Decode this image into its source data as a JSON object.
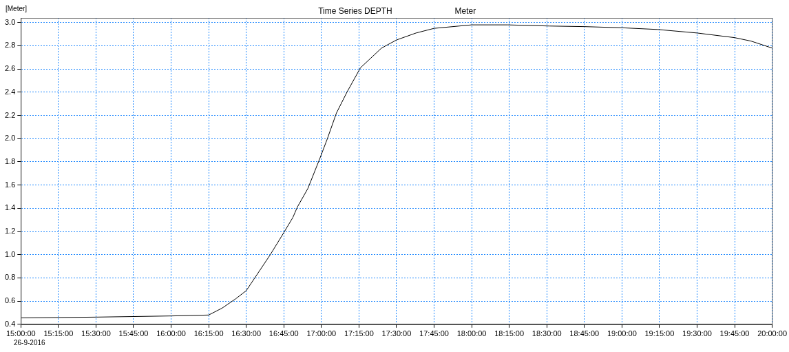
{
  "chart_data": {
    "type": "line",
    "title": "Time Series DEPTH",
    "subtitle": "Meter",
    "ylabel": "[Meter]",
    "annotations": [
      "26-9-2016"
    ],
    "x": [
      15.0,
      15.5,
      16.0,
      16.25,
      16.34,
      16.43,
      16.5,
      16.66,
      16.75,
      16.81,
      16.84,
      16.91,
      16.99,
      17.04,
      17.1,
      17.17,
      17.26,
      17.4,
      17.5,
      17.63,
      17.75,
      18.0,
      18.24,
      18.52,
      18.75,
      19.0,
      19.24,
      19.5,
      19.75,
      19.86,
      20.0
    ],
    "series": [
      {
        "color": "#000000",
        "values": [
          0.455,
          0.462,
          0.472,
          0.48,
          0.54,
          0.62,
          0.69,
          1.0,
          1.19,
          1.32,
          1.41,
          1.57,
          1.83,
          2.0,
          2.22,
          2.4,
          2.61,
          2.78,
          2.85,
          2.91,
          2.95,
          2.98,
          2.98,
          2.97,
          2.965,
          2.955,
          2.94,
          2.91,
          2.87,
          2.84,
          2.78
        ]
      }
    ],
    "xlim": [
      15,
      20
    ],
    "xticks": [
      {
        "value": 15,
        "label": "15:00:00"
      },
      {
        "value": 15.25,
        "label": "15:15:00"
      },
      {
        "value": 15.5,
        "label": "15:30:00"
      },
      {
        "value": 15.75,
        "label": "15:45:00"
      },
      {
        "value": 16,
        "label": "16:00:00"
      },
      {
        "value": 16.25,
        "label": "16:15:00"
      },
      {
        "value": 16.5,
        "label": "16:30:00"
      },
      {
        "value": 16.75,
        "label": "16:45:00"
      },
      {
        "value": 17,
        "label": "17:00:00"
      },
      {
        "value": 17.25,
        "label": "17:15:00"
      },
      {
        "value": 17.5,
        "label": "17:30:00"
      },
      {
        "value": 17.75,
        "label": "17:45:00"
      },
      {
        "value": 18,
        "label": "18:00:00"
      },
      {
        "value": 18.25,
        "label": "18:15:00"
      },
      {
        "value": 18.5,
        "label": "18:30:00"
      },
      {
        "value": 18.75,
        "label": "18:45:00"
      },
      {
        "value": 19,
        "label": "19:00:00"
      },
      {
        "value": 19.25,
        "label": "19:15:00"
      },
      {
        "value": 19.5,
        "label": "19:30:00"
      },
      {
        "value": 19.75,
        "label": "19:45:00"
      },
      {
        "value": 20,
        "label": "20:00:00"
      }
    ],
    "ylim": [
      0.4,
      3.04
    ],
    "yticks": [
      {
        "value": 0.4,
        "label": "0.4"
      },
      {
        "value": 0.6,
        "label": "0.6"
      },
      {
        "value": 0.8,
        "label": "0.8"
      },
      {
        "value": 1.0,
        "label": "1.0"
      },
      {
        "value": 1.2,
        "label": "1.2"
      },
      {
        "value": 1.4,
        "label": "1.4"
      },
      {
        "value": 1.6,
        "label": "1.6"
      },
      {
        "value": 1.8,
        "label": "1.8"
      },
      {
        "value": 2.0,
        "label": "2.0"
      },
      {
        "value": 2.2,
        "label": "2.2"
      },
      {
        "value": 2.4,
        "label": "2.4"
      },
      {
        "value": 2.6,
        "label": "2.6"
      },
      {
        "value": 2.8,
        "label": "2.8"
      },
      {
        "value": 3.0,
        "label": "3.0"
      }
    ],
    "grid": true,
    "legend": false,
    "marker": "none",
    "line_style": "solid"
  }
}
